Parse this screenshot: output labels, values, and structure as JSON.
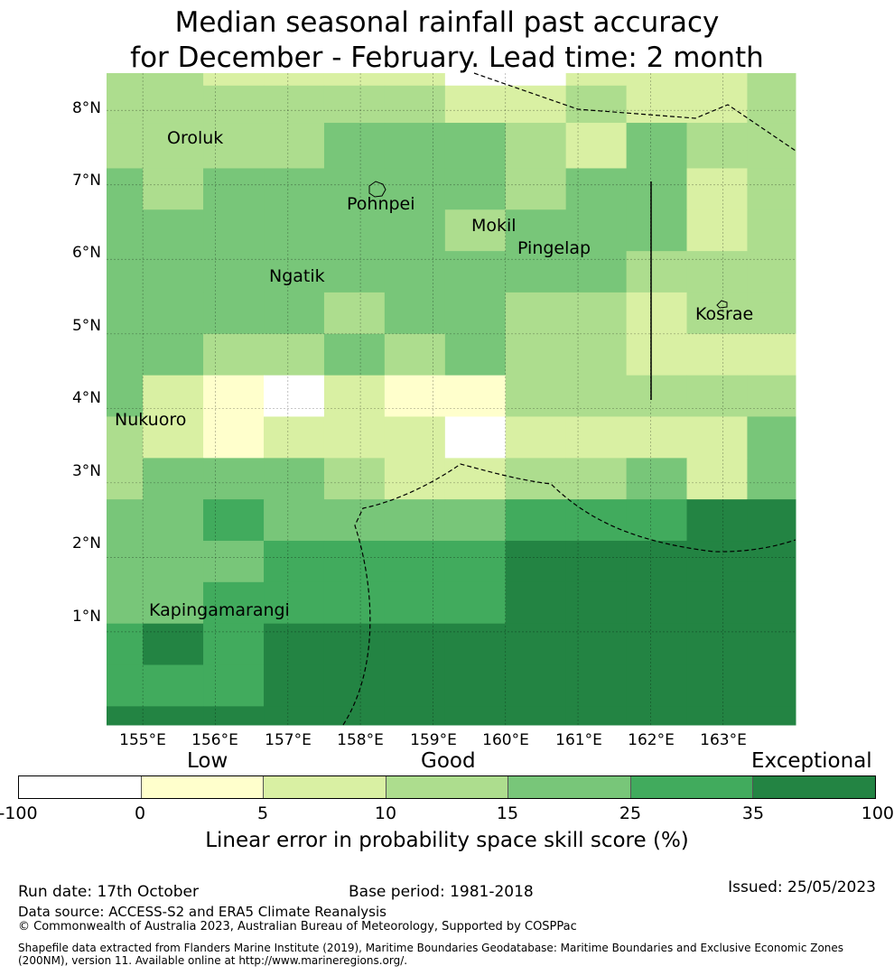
{
  "title": {
    "line1": "Median seasonal rainfall past accuracy",
    "line2": "for December - February. Lead time: 2 month"
  },
  "map": {
    "lat_labels": [
      "8°N",
      "7°N",
      "6°N",
      "5°N",
      "4°N",
      "3°N",
      "2°N",
      "1°N"
    ],
    "lon_labels": [
      "155°E",
      "156°E",
      "157°E",
      "158°E",
      "159°E",
      "160°E",
      "161°E",
      "162°E",
      "163°E"
    ],
    "lon_range": [
      154.5,
      164.0
    ],
    "lat_range": [
      -0.25,
      8.5
    ],
    "grid_lons": [
      154.5,
      155.0,
      155.833,
      156.667,
      157.5,
      158.333,
      159.167,
      160.0,
      160.833,
      161.667,
      162.5,
      163.333,
      164.0
    ],
    "grid_lats": [
      8.5,
      8.333,
      7.833,
      7.222,
      6.667,
      6.111,
      5.556,
      5.0,
      4.444,
      3.889,
      3.333,
      2.778,
      2.222,
      1.667,
      1.111,
      0.556,
      0.0,
      -0.25
    ],
    "cell_classes": [
      [
        3,
        3,
        2,
        2,
        2,
        2,
        0,
        0,
        2,
        2,
        2,
        3
      ],
      [
        3,
        3,
        3,
        3,
        3,
        3,
        2,
        2,
        3,
        2,
        2,
        3
      ],
      [
        3,
        3,
        3,
        3,
        4,
        4,
        4,
        3,
        2,
        4,
        3,
        3
      ],
      [
        4,
        3,
        4,
        4,
        4,
        4,
        4,
        3,
        4,
        4,
        2,
        3
      ],
      [
        4,
        4,
        4,
        4,
        4,
        4,
        3,
        4,
        4,
        4,
        2,
        3
      ],
      [
        4,
        4,
        4,
        4,
        4,
        4,
        4,
        4,
        4,
        3,
        3,
        3
      ],
      [
        4,
        4,
        4,
        4,
        3,
        4,
        4,
        3,
        3,
        2,
        3,
        3
      ],
      [
        4,
        4,
        3,
        3,
        4,
        3,
        4,
        3,
        3,
        2,
        2,
        2
      ],
      [
        4,
        2,
        1,
        0,
        2,
        1,
        1,
        3,
        3,
        3,
        3,
        3
      ],
      [
        3,
        2,
        1,
        2,
        2,
        2,
        0,
        2,
        2,
        2,
        2,
        4
      ],
      [
        3,
        4,
        4,
        4,
        3,
        2,
        2,
        3,
        3,
        4,
        2,
        4
      ],
      [
        4,
        4,
        5,
        4,
        4,
        4,
        4,
        5,
        5,
        5,
        6,
        6
      ],
      [
        4,
        4,
        4,
        5,
        5,
        5,
        5,
        6,
        6,
        6,
        6,
        6
      ],
      [
        4,
        4,
        5,
        5,
        5,
        5,
        5,
        6,
        6,
        6,
        6,
        6
      ],
      [
        5,
        6,
        5,
        6,
        6,
        6,
        6,
        6,
        6,
        6,
        6,
        6
      ],
      [
        5,
        5,
        5,
        6,
        6,
        6,
        6,
        6,
        6,
        6,
        6,
        6
      ],
      [
        6,
        6,
        6,
        6,
        6,
        6,
        6,
        6,
        6,
        6,
        6,
        6
      ]
    ],
    "places": [
      {
        "name": "Oroluk"
      },
      {
        "name": "Pohnpei"
      },
      {
        "name": "Mokil"
      },
      {
        "name": "Pingelap"
      },
      {
        "name": "Ngatik"
      },
      {
        "name": "Kosrae"
      },
      {
        "name": "Nukuoro"
      },
      {
        "name": "Kapingamarangi"
      }
    ]
  },
  "legend": {
    "quality_labels": [
      "Low",
      "Good",
      "Exceptional"
    ],
    "colors": [
      "#ffffff",
      "#ffffcc",
      "#d9f0a3",
      "#addd8e",
      "#78c679",
      "#41ab5d",
      "#238443"
    ],
    "ticks": [
      "-100",
      "0",
      "5",
      "10",
      "15",
      "25",
      "35",
      "100"
    ],
    "label": "Linear error in probability space skill score (%)"
  },
  "footer": {
    "run_date": "Run date: 17th October",
    "base_period": "Base period: 1981-2018",
    "issued": "Issued: 25/05/2023",
    "data_source": "Data source: ACCESS-S2 and ERA5 Climate Reanalysis",
    "copyright": "© Commonwealth of Australia 2023, Australian Bureau of Meteorology, Supported by COSPPac",
    "shapefile_line1": "Shapefile data extracted from Flanders Marine Institute (2019), Maritime Boundaries Geodatabase: Maritime Boundaries and Exclusive Economic Zones",
    "shapefile_line2": "(200NM), version 11. Available online at http://www.marineregions.org/."
  }
}
